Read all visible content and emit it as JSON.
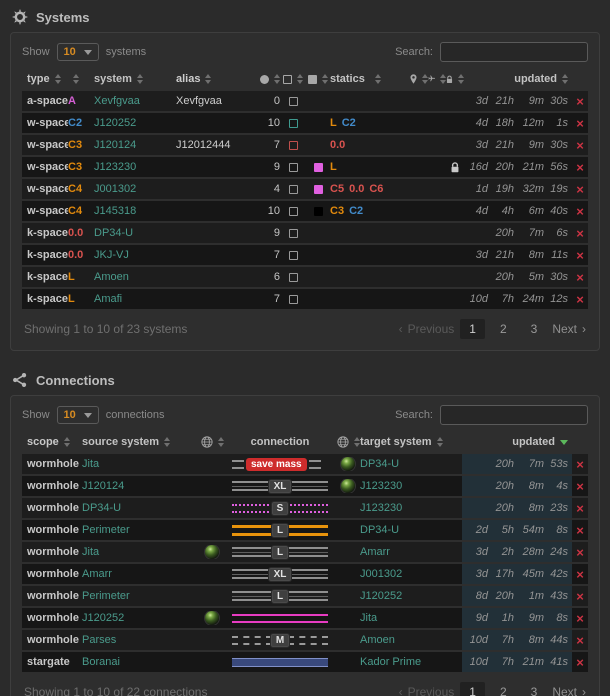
{
  "glyphs": {
    "delete": "×",
    "prev_arrow": "‹",
    "next_arrow": "›"
  },
  "colors": {
    "teal_link": "#4a9b8c",
    "sec_abyssal": "#d45fd4",
    "sec_blue": "#428bca",
    "sec_orange": "#e28a0d",
    "sec_red": "#d9534f",
    "delete_red": "#cc3344",
    "sort_active_green": "#5cb85c",
    "mass_badge_red": "#ce2c2c",
    "updated_col_tint": "#223038"
  },
  "systems": {
    "title": "Systems",
    "controls": {
      "show_label": "Show",
      "page_size": "10",
      "unit": "systems",
      "search_label": "Search:",
      "search_value": ""
    },
    "headers": {
      "type": "type",
      "system": "system",
      "alias": "alias",
      "statics": "statics",
      "updated": "updated"
    },
    "rows": [
      {
        "type": "a-space",
        "sec": "A",
        "sec_color": "#d45fd4",
        "system": "Xevfgvaa",
        "alias": "Xevfgvaa",
        "count": "0",
        "box": "#9a9a9a",
        "fill": "",
        "statics": [],
        "lock": false,
        "updated": [
          "3d",
          "21h",
          "9m",
          "30s"
        ]
      },
      {
        "type": "w-space",
        "sec": "C2",
        "sec_color": "#428bca",
        "system": "J120252",
        "alias": "",
        "count": "10",
        "box": "#3f9a8f",
        "fill": "",
        "statics": [
          {
            "t": "L",
            "c": "#e28a0d"
          },
          {
            "t": "C2",
            "c": "#428bca"
          }
        ],
        "lock": false,
        "updated": [
          "4d",
          "18h",
          "12m",
          "1s"
        ]
      },
      {
        "type": "w-space",
        "sec": "C3",
        "sec_color": "#e28a0d",
        "system": "J120124",
        "alias": "J12012444",
        "count": "7",
        "box": "#c0504d",
        "fill": "",
        "statics": [
          {
            "t": "0.0",
            "c": "#d9534f"
          }
        ],
        "lock": false,
        "updated": [
          "3d",
          "21h",
          "9m",
          "30s"
        ]
      },
      {
        "type": "w-space",
        "sec": "C3",
        "sec_color": "#e28a0d",
        "system": "J123230",
        "alias": "",
        "count": "9",
        "box": "#9a9a9a",
        "fill": "#e060e0",
        "statics": [
          {
            "t": "L",
            "c": "#e28a0d"
          }
        ],
        "lock": true,
        "updated": [
          "16d",
          "20h",
          "21m",
          "56s"
        ]
      },
      {
        "type": "w-space",
        "sec": "C4",
        "sec_color": "#e28a0d",
        "system": "J001302",
        "alias": "",
        "count": "4",
        "box": "#9a9a9a",
        "fill": "#e060e0",
        "statics": [
          {
            "t": "C5",
            "c": "#d9534f"
          },
          {
            "t": "0.0",
            "c": "#d9534f"
          },
          {
            "t": "C6",
            "c": "#d9534f"
          }
        ],
        "lock": false,
        "updated": [
          "1d",
          "19h",
          "32m",
          "19s"
        ]
      },
      {
        "type": "w-space",
        "sec": "C4",
        "sec_color": "#e28a0d",
        "system": "J145318",
        "alias": "",
        "count": "10",
        "box": "#9a9a9a",
        "fill": "#000000",
        "statics": [
          {
            "t": "C3",
            "c": "#e28a0d"
          },
          {
            "t": "C2",
            "c": "#428bca"
          }
        ],
        "lock": false,
        "updated": [
          "4d",
          "4h",
          "6m",
          "40s"
        ]
      },
      {
        "type": "k-space",
        "sec": "0.0",
        "sec_color": "#d9534f",
        "system": "DP34-U",
        "alias": "",
        "count": "9",
        "box": "#9a9a9a",
        "fill": "",
        "statics": [],
        "lock": false,
        "updated": [
          "",
          "20h",
          "7m",
          "6s"
        ]
      },
      {
        "type": "k-space",
        "sec": "0.0",
        "sec_color": "#d9534f",
        "system": "JKJ-VJ",
        "alias": "",
        "count": "7",
        "box": "#9a9a9a",
        "fill": "",
        "statics": [],
        "lock": false,
        "updated": [
          "3d",
          "21h",
          "8m",
          "11s"
        ]
      },
      {
        "type": "k-space",
        "sec": "L",
        "sec_color": "#e28a0d",
        "system": "Amoen",
        "alias": "",
        "count": "6",
        "box": "#9a9a9a",
        "fill": "",
        "statics": [],
        "lock": false,
        "updated": [
          "",
          "20h",
          "5m",
          "30s"
        ]
      },
      {
        "type": "k-space",
        "sec": "L",
        "sec_color": "#e28a0d",
        "system": "Amafi",
        "alias": "",
        "count": "7",
        "box": "#9a9a9a",
        "fill": "",
        "statics": [],
        "lock": false,
        "updated": [
          "10d",
          "7h",
          "24m",
          "12s"
        ]
      }
    ],
    "footer": {
      "summary": "Showing 1 to 10 of 23 systems",
      "prev": "Previous",
      "next": "Next",
      "pages": [
        "1",
        "2",
        "3"
      ],
      "active": "1"
    }
  },
  "connections": {
    "title": "Connections",
    "controls": {
      "show_label": "Show",
      "page_size": "10",
      "unit": "connections",
      "search_label": "Search:",
      "search_value": ""
    },
    "headers": {
      "scope": "scope",
      "source": "source system",
      "connection": "connection",
      "target": "target system",
      "updated": "updated"
    },
    "rows": [
      {
        "scope": "wormhole",
        "source": "Jita",
        "src_globe": false,
        "conn": {
          "label": "save mass",
          "style": "savemass"
        },
        "tgt_globe": true,
        "target": "DP34-U",
        "updated": [
          "",
          "20h",
          "7m",
          "53s"
        ]
      },
      {
        "scope": "wormhole",
        "source": "J120124",
        "src_globe": false,
        "conn": {
          "label": "XL",
          "style": "gray"
        },
        "tgt_globe": true,
        "target": "J123230",
        "updated": [
          "",
          "20h",
          "8m",
          "4s"
        ]
      },
      {
        "scope": "wormhole",
        "source": "DP34-U",
        "src_globe": false,
        "conn": {
          "label": "S",
          "style": "dotmag"
        },
        "tgt_globe": false,
        "target": "J123230",
        "updated": [
          "",
          "20h",
          "8m",
          "23s"
        ]
      },
      {
        "scope": "wormhole",
        "source": "Perimeter",
        "src_globe": false,
        "conn": {
          "label": "L",
          "style": "orange"
        },
        "tgt_globe": false,
        "target": "DP34-U",
        "updated": [
          "2d",
          "5h",
          "54m",
          "8s"
        ]
      },
      {
        "scope": "wormhole",
        "source": "Jita",
        "src_globe": true,
        "conn": {
          "label": "L",
          "style": "gray"
        },
        "tgt_globe": false,
        "target": "Amarr",
        "updated": [
          "3d",
          "2h",
          "28m",
          "24s"
        ]
      },
      {
        "scope": "wormhole",
        "source": "Amarr",
        "src_globe": false,
        "conn": {
          "label": "XL",
          "style": "gray"
        },
        "tgt_globe": false,
        "target": "J001302",
        "updated": [
          "3d",
          "17h",
          "45m",
          "42s"
        ]
      },
      {
        "scope": "wormhole",
        "source": "Perimeter",
        "src_globe": false,
        "conn": {
          "label": "L",
          "style": "gray"
        },
        "tgt_globe": false,
        "target": "J120252",
        "updated": [
          "8d",
          "20h",
          "1m",
          "43s"
        ]
      },
      {
        "scope": "wormhole",
        "source": "J120252",
        "src_globe": true,
        "conn": {
          "label": "",
          "style": "magenta"
        },
        "tgt_globe": false,
        "target": "Jita",
        "updated": [
          "9d",
          "1h",
          "9m",
          "8s"
        ]
      },
      {
        "scope": "wormhole",
        "source": "Parses",
        "src_globe": false,
        "conn": {
          "label": "M",
          "style": "dashgray"
        },
        "tgt_globe": false,
        "target": "Amoen",
        "updated": [
          "10d",
          "7h",
          "8m",
          "44s"
        ]
      },
      {
        "scope": "stargate",
        "source": "Boranai",
        "src_globe": false,
        "conn": {
          "label": "",
          "style": "blue"
        },
        "tgt_globe": false,
        "target": "Kador Prime",
        "updated": [
          "10d",
          "7h",
          "21m",
          "41s"
        ]
      }
    ],
    "footer": {
      "summary": "Showing 1 to 10 of 22 connections",
      "prev": "Previous",
      "next": "Next",
      "pages": [
        "1",
        "2",
        "3"
      ],
      "active": "1"
    }
  }
}
